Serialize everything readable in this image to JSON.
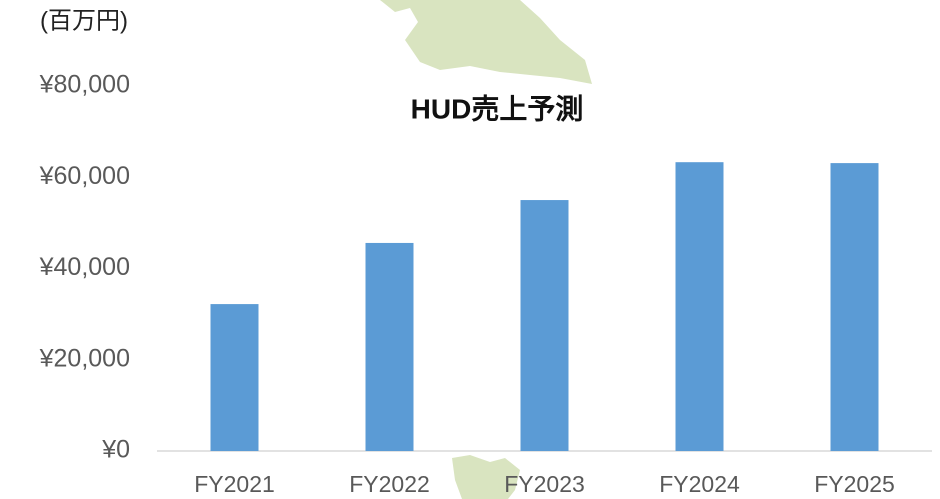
{
  "chart_data": {
    "type": "bar",
    "title": "HUD売上予測",
    "unit_label": "(百万円)",
    "categories": [
      "FY2021",
      "FY2022",
      "FY2023",
      "FY2024",
      "FY2025"
    ],
    "values": [
      32200,
      45600,
      55000,
      63300,
      63100
    ],
    "color": "#5b9bd5",
    "ylim": [
      0,
      80000
    ],
    "yticks": [
      {
        "value": 0,
        "label": "¥0"
      },
      {
        "value": 20000,
        "label": "¥20,000"
      },
      {
        "value": 40000,
        "label": "¥40,000"
      },
      {
        "value": 60000,
        "label": "¥60,000"
      },
      {
        "value": 80000,
        "label": "¥80,000"
      }
    ],
    "grid": false
  }
}
